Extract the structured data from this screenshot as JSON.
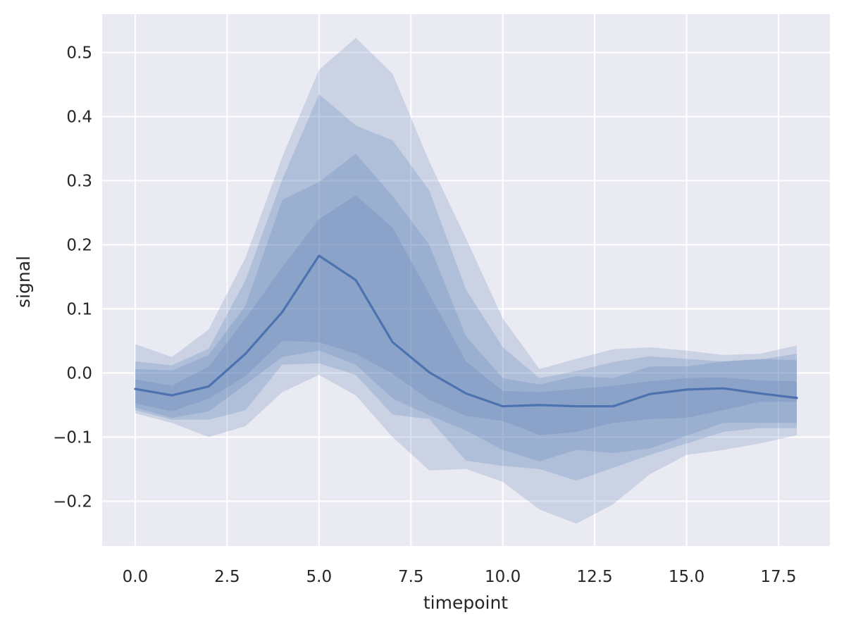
{
  "chart_data": {
    "type": "line",
    "xlabel": "timepoint",
    "ylabel": "signal",
    "xlim": [
      -0.9,
      18.9
    ],
    "ylim": [
      -0.27,
      0.56
    ],
    "x_ticks": [
      0,
      2.5,
      5,
      7.5,
      10,
      12.5,
      15,
      17.5
    ],
    "x_tick_labels": [
      "0.0",
      "2.5",
      "5.0",
      "7.5",
      "10.0",
      "12.5",
      "15.0",
      "17.5"
    ],
    "y_ticks": [
      -0.2,
      -0.1,
      0,
      0.1,
      0.2,
      0.3,
      0.4,
      0.5
    ],
    "y_tick_labels": [
      "−0.2",
      "−0.1",
      "0.0",
      "0.1",
      "0.2",
      "0.3",
      "0.4",
      "0.5"
    ],
    "grid": true,
    "colors": {
      "background": "#eaeaf2",
      "grid": "#ffffff",
      "line": "#4c72b0",
      "band": "#4c72b0"
    },
    "x": [
      0,
      1,
      2,
      3,
      4,
      5,
      6,
      7,
      8,
      9,
      10,
      11,
      12,
      13,
      14,
      15,
      16,
      17,
      18
    ],
    "mean": [
      -0.025,
      -0.035,
      -0.021,
      0.03,
      0.095,
      0.183,
      0.145,
      0.048,
      0.001,
      -0.032,
      -0.052,
      -0.05,
      -0.052,
      -0.052,
      -0.033,
      -0.026,
      -0.024,
      -0.032,
      -0.039
    ],
    "bands": [
      {
        "lower": [
          -0.063,
          -0.078,
          -0.1,
          -0.083,
          -0.03,
          -0.003,
          -0.035,
          -0.1,
          -0.152,
          -0.15,
          -0.17,
          -0.213,
          -0.235,
          -0.205,
          -0.158,
          -0.128,
          -0.12,
          -0.11,
          -0.097
        ],
        "upper": [
          0.045,
          0.025,
          0.068,
          0.18,
          0.337,
          0.473,
          0.523,
          0.467,
          0.33,
          0.21,
          0.085,
          0.006,
          0.022,
          0.037,
          0.04,
          0.035,
          0.028,
          0.03,
          0.043
        ]
      },
      {
        "lower": [
          -0.058,
          -0.073,
          -0.073,
          -0.058,
          0.013,
          0.015,
          -0.003,
          -0.065,
          -0.072,
          -0.137,
          -0.145,
          -0.15,
          -0.168,
          -0.148,
          -0.128,
          -0.11,
          -0.092,
          -0.086,
          -0.086
        ],
        "upper": [
          0.018,
          0.012,
          0.038,
          0.145,
          0.302,
          0.435,
          0.386,
          0.363,
          0.285,
          0.13,
          0.04,
          -0.008,
          0.003,
          0.017,
          0.026,
          0.022,
          0.018,
          0.021,
          0.03
        ]
      },
      {
        "lower": [
          -0.054,
          -0.07,
          -0.06,
          -0.018,
          0.025,
          0.035,
          0.013,
          -0.04,
          -0.066,
          -0.09,
          -0.12,
          -0.138,
          -0.12,
          -0.125,
          -0.118,
          -0.098,
          -0.078,
          -0.078,
          -0.078
        ],
        "upper": [
          0.006,
          0.004,
          0.028,
          0.105,
          0.27,
          0.298,
          0.342,
          0.276,
          0.2,
          0.057,
          -0.008,
          -0.018,
          -0.005,
          -0.008,
          0.01,
          0.01,
          0.018,
          0.022,
          0.02
        ]
      },
      {
        "lower": [
          -0.047,
          -0.06,
          -0.04,
          -0.005,
          0.05,
          0.048,
          0.03,
          -0.001,
          -0.042,
          -0.067,
          -0.075,
          -0.097,
          -0.092,
          -0.078,
          -0.072,
          -0.07,
          -0.058,
          -0.045,
          -0.045
        ],
        "upper": [
          -0.01,
          -0.02,
          0.01,
          0.085,
          0.165,
          0.24,
          0.277,
          0.227,
          0.123,
          0.018,
          -0.028,
          -0.03,
          -0.025,
          -0.02,
          -0.013,
          -0.008,
          -0.007,
          -0.012,
          -0.013
        ]
      }
    ]
  }
}
